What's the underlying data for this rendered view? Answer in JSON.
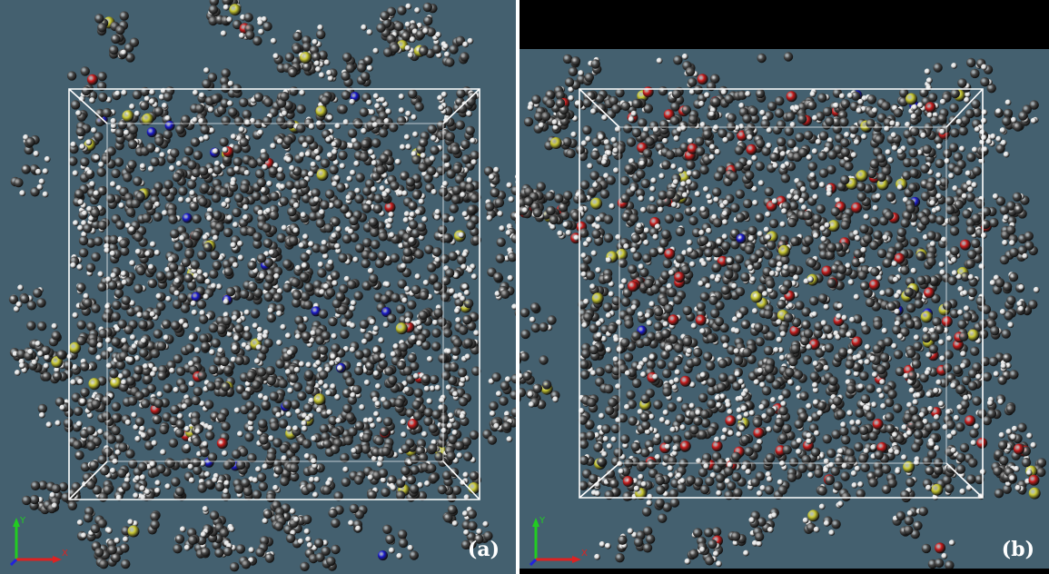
{
  "panels": [
    {
      "label": "(a)",
      "axes": {
        "y_label": "Y",
        "x_label": "X"
      },
      "colors": {
        "background": "#44606f",
        "carbon": "#4a4a4a",
        "hydrogen": "#e8e8e8",
        "sulfur": "#c8c832",
        "nitrogen": "#1a1acc",
        "oxygen": "#c81e1e",
        "box": "#ffffff"
      }
    },
    {
      "label": "(b)",
      "axes": {
        "y_label": "Y",
        "x_label": "X"
      },
      "colors": {
        "background": "#44606f",
        "carbon": "#4a4a4a",
        "hydrogen": "#e8e8e8",
        "sulfur": "#c8c832",
        "nitrogen": "#1a1acc",
        "oxygen": "#c81e1e",
        "box": "#ffffff"
      }
    }
  ]
}
